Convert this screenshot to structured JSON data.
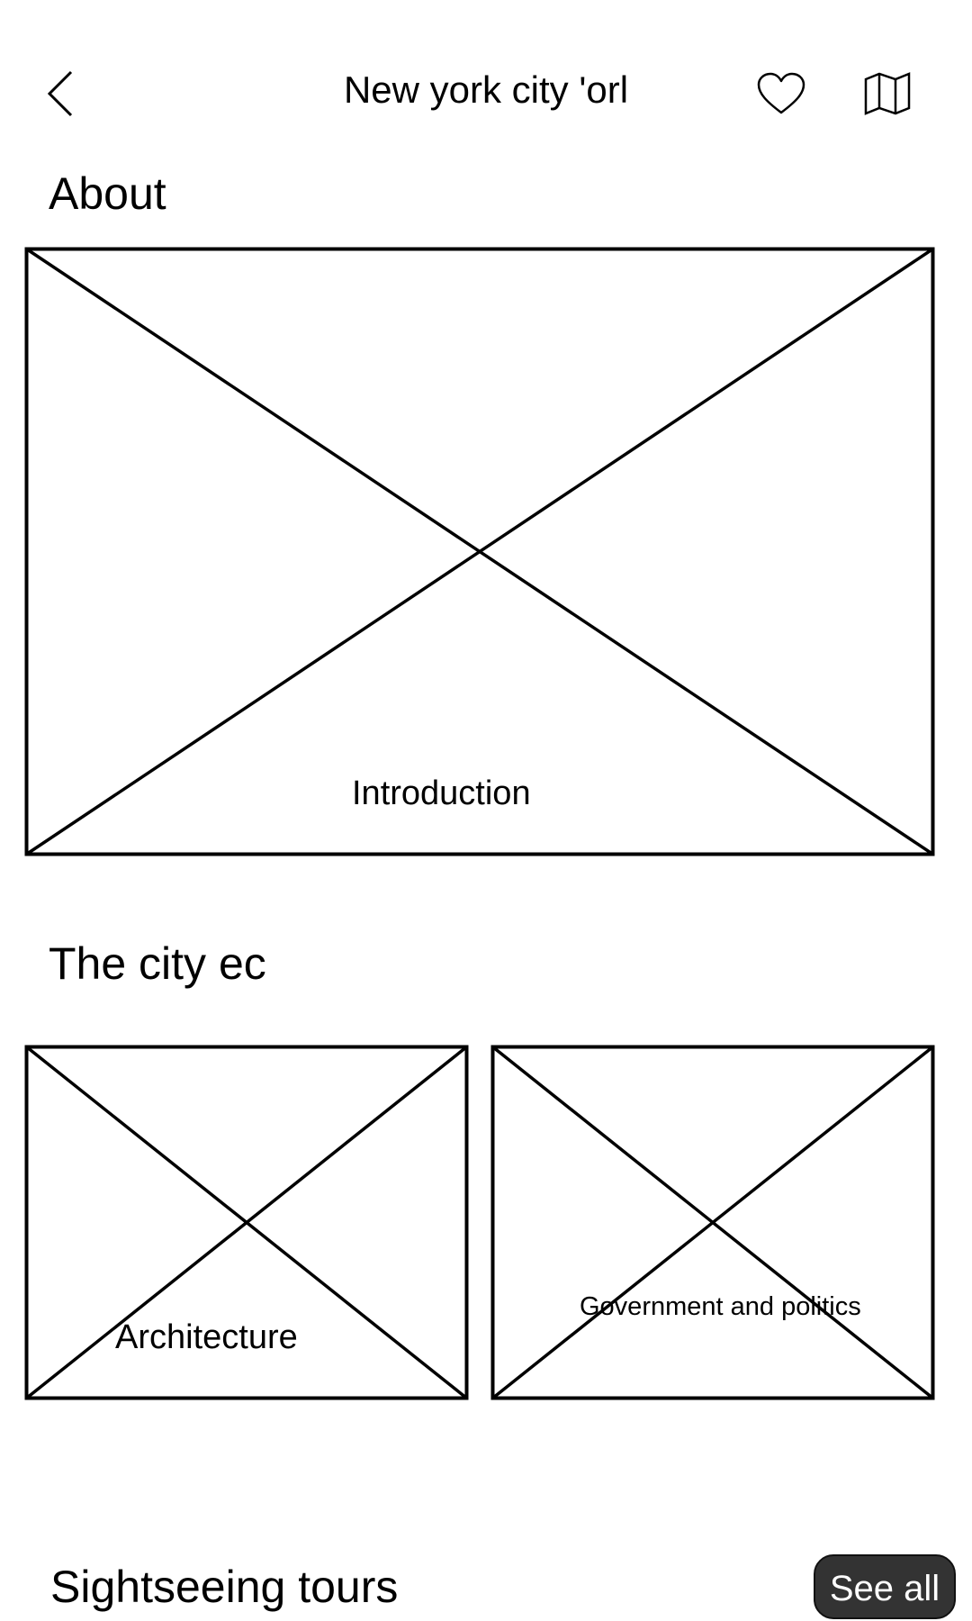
{
  "header": {
    "back_icon": "chevron-left-icon",
    "title": "New york city 'orl",
    "favorite_icon": "heart-icon",
    "map_icon": "map-icon"
  },
  "about": {
    "heading": "About",
    "card": {
      "label": "Introduction"
    }
  },
  "city": {
    "heading": "The city ec",
    "cards": [
      {
        "label": "Architecture"
      },
      {
        "label": "Government and politics"
      }
    ]
  },
  "tours": {
    "heading": "Sightseeing tours",
    "see_all_label": "See all"
  },
  "colors": {
    "stroke": "#000000",
    "button_bg": "#333333",
    "button_text": "#ffffff"
  }
}
